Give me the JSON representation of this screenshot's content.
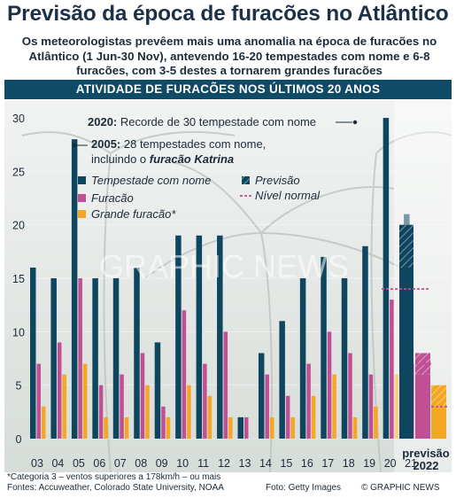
{
  "header": {
    "title": "Previsão da época de furacões no Atlântico",
    "subtitle": "Os meteorologistas prevêem mais uma anomalia na época de furacões no Atlântico (1 Jun-30 Nov), antevendo 16-20 tempestades com nome e 6-8 furacões, com 3-5 destes a tornarem grandes furacões"
  },
  "band": {
    "label": "ATIVIDADE DE FURACÕES NOS ÚLTIMOS 20 ANOS"
  },
  "watermark": "GRAPHIC NEWS",
  "colors": {
    "tempestade": "#0e4660",
    "furacao": "#c04f94",
    "grande": "#f5a623",
    "normal_line": "#c04f94",
    "band": "#0f4a66"
  },
  "chart_data": {
    "type": "bar",
    "categories": [
      "03",
      "04",
      "05",
      "06",
      "07",
      "08",
      "09",
      "10",
      "11",
      "12",
      "13",
      "14",
      "15",
      "16",
      "17",
      "18",
      "19",
      "20",
      "21"
    ],
    "series": [
      {
        "name": "Tempestade com nome",
        "values": [
          16,
          15,
          28,
          15,
          15,
          16,
          9,
          19,
          19,
          19,
          2,
          8,
          11,
          15,
          17,
          15,
          18,
          30,
          21
        ]
      },
      {
        "name": "Furacão",
        "values": [
          7,
          9,
          15,
          5,
          6,
          8,
          3,
          12,
          7,
          10,
          2,
          6,
          4,
          7,
          10,
          8,
          6,
          13,
          7
        ]
      },
      {
        "name": "Grande furacão",
        "values": [
          3,
          6,
          7,
          2,
          2,
          5,
          2,
          5,
          4,
          2,
          0,
          2,
          2,
          4,
          6,
          2,
          3,
          6,
          4
        ]
      }
    ],
    "forecast": {
      "label": "previsão",
      "year": "2022",
      "tempestade": [
        16,
        20
      ],
      "furacao": [
        6,
        8
      ],
      "grande": [
        3,
        5
      ],
      "normal": {
        "tempestade": 14,
        "furacao": 7,
        "grande": 3
      }
    },
    "yticks": [
      0,
      5,
      10,
      15,
      20,
      25,
      30
    ],
    "ylim": [
      0,
      31
    ],
    "legend": {
      "tempestade": "Tempestade com nome",
      "furacao": "Furacão",
      "grande": "Grande furacão",
      "previsao": "Previsão",
      "normal": "Nível normal"
    },
    "annotations": [
      {
        "year_index": 17,
        "bold": "2020:",
        "text": "Recorde de 30 tempestade com nome"
      },
      {
        "year_index": 2,
        "bold": "2005:",
        "line1": "28 tempestades com nome,",
        "line2_pre": "incluindo o ",
        "line2_emph": "furacão Katrina"
      }
    ]
  },
  "footer": {
    "note": "*Categoria 3 – ventos superiores a 178km/h – ou mais",
    "sources": "Fontes: Accuweather, Colorado State University, NOAA",
    "photo": "Foto: Getty Images",
    "credit": "© GRAPHIC NEWS"
  }
}
